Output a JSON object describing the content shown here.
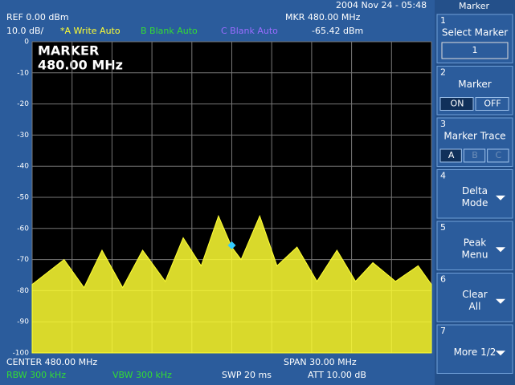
{
  "header": {
    "ref": "REF  0.00 dBm",
    "scale": "10.0 dB/",
    "datetime": "2004 Nov 24 - 05:48",
    "marker_freq": "MKR 480.00 MHz",
    "marker_level": "-65.42 dBm",
    "traces": [
      {
        "label": "*A Write Auto",
        "color": "#ffff33"
      },
      {
        "label": "B Blank Auto",
        "color": "#33dd33"
      },
      {
        "label": "C Blank Auto",
        "color": "#9a6cff"
      }
    ]
  },
  "chart_data": {
    "type": "area",
    "annotation": "MARKER",
    "annotation_value": "480.00 MHz",
    "x": [
      465,
      467.4,
      468.9,
      470.25,
      471.8,
      473.3,
      475,
      476.35,
      477.7,
      479,
      480,
      480.7,
      482.1,
      483.4,
      484.9,
      486.4,
      487.9,
      489.3,
      490.6,
      492.3,
      494,
      495
    ],
    "values": [
      -78,
      -70,
      -79,
      -67,
      -79,
      -67,
      -77,
      -63,
      -72,
      -56,
      -66,
      -70,
      -56,
      -72,
      -66,
      -77,
      -67,
      -77,
      -71,
      -77,
      -72,
      -78
    ],
    "color": "#ffff33",
    "xlim": [
      465,
      495
    ],
    "xticks": [
      465,
      468,
      471,
      474,
      477,
      480,
      483,
      486,
      489,
      492,
      495
    ],
    "ylim": [
      -100,
      0
    ],
    "yticks": [
      0,
      -10,
      -20,
      -30,
      -40,
      -50,
      -60,
      -70,
      -80,
      -90,
      -100
    ],
    "grid": true,
    "marker": {
      "x": 480,
      "y": -65.42,
      "color": "#33ccff"
    }
  },
  "footer": {
    "center": "CENTER 480.00 MHz",
    "span": "SPAN 30.00 MHz",
    "rbw": "RBW  300 kHz",
    "vbw": "VBW  300 kHz",
    "swp": "SWP  20 ms",
    "att": "ATT 10.00 dB"
  },
  "menu": {
    "title": "Marker",
    "keys": [
      {
        "number": "1",
        "lines": [
          "Select Marker"
        ],
        "field": "1"
      },
      {
        "number": "2",
        "lines": [
          "Marker"
        ],
        "options": [
          "ON",
          "OFF"
        ]
      },
      {
        "number": "3",
        "lines": [
          "Marker Trace"
        ],
        "options": [
          "A",
          "B",
          "C"
        ]
      },
      {
        "number": "4",
        "lines": [
          "Delta",
          "Mode"
        ]
      },
      {
        "number": "5",
        "lines": [
          "Peak",
          "Menu"
        ]
      },
      {
        "number": "6",
        "lines": [
          "Clear",
          "All"
        ]
      },
      {
        "number": "7",
        "lines": [
          "More 1/2"
        ]
      }
    ]
  }
}
